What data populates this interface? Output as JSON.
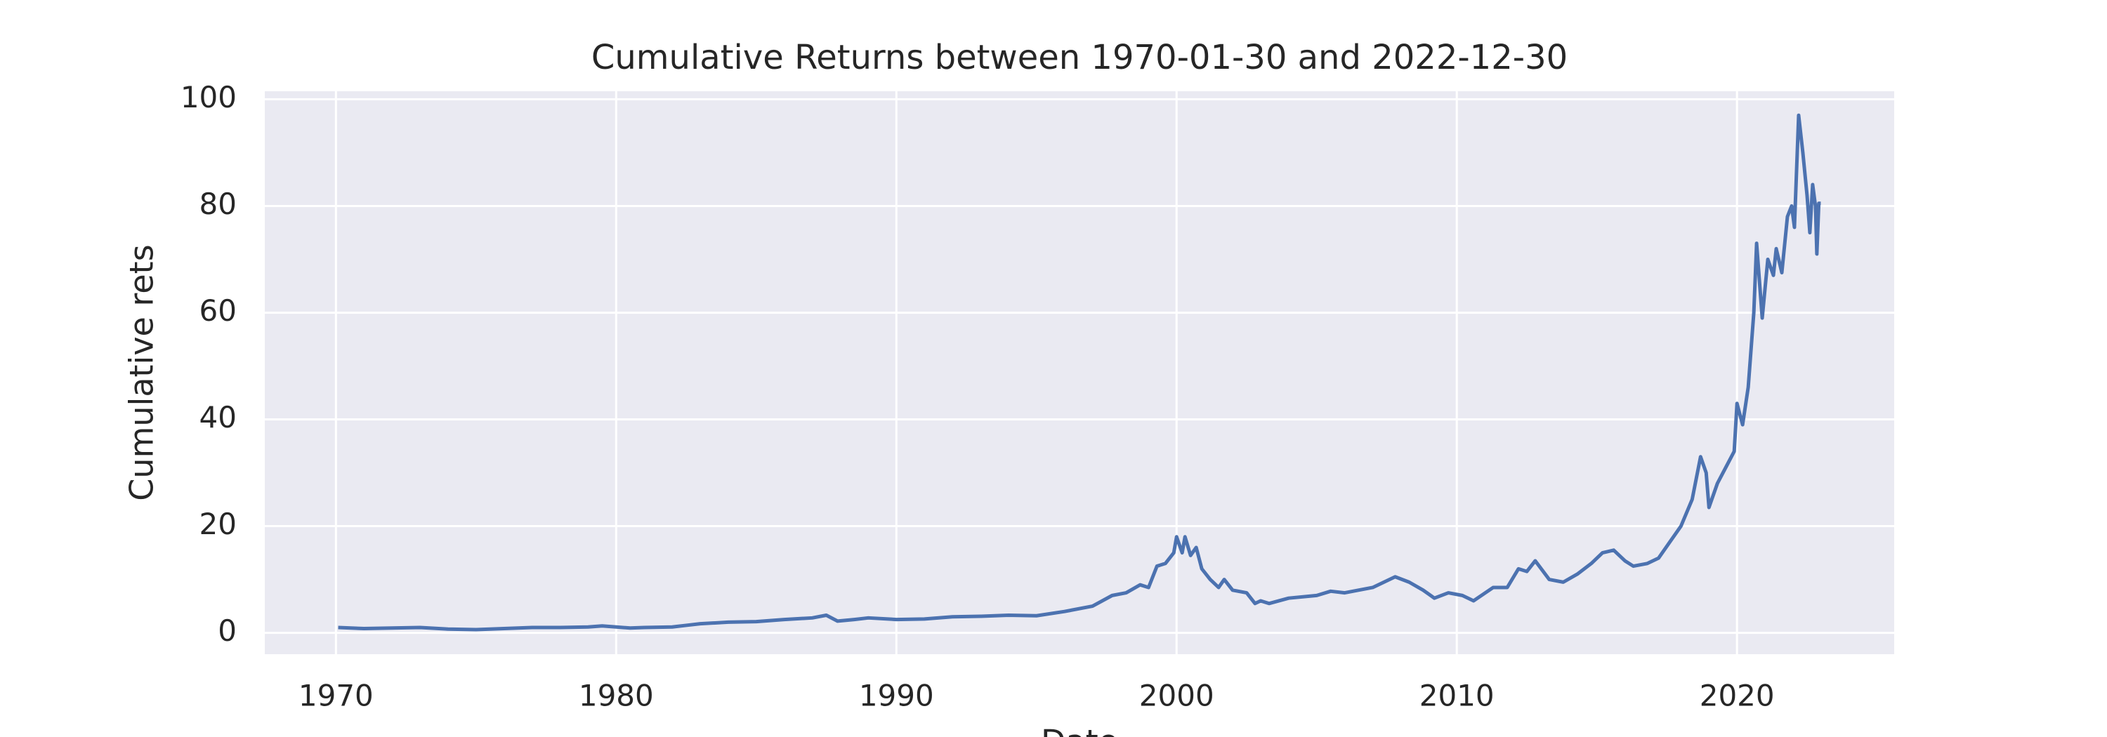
{
  "chart_data": {
    "type": "line",
    "title": "Cumulative Returns between 1970-01-30 and 2022-12-30",
    "x_label": "Date",
    "y_label": "Cumulative rets",
    "x": [
      1970.08,
      1971,
      1972,
      1973,
      1974,
      1975,
      1976,
      1977,
      1978,
      1979,
      1979.5,
      1980,
      1980.5,
      1981,
      1982,
      1982.5,
      1983,
      1984,
      1985,
      1986,
      1987,
      1987.5,
      1987.9,
      1988.5,
      1989,
      1990,
      1991,
      1992,
      1993,
      1994,
      1995,
      1996,
      1997,
      1997.7,
      1998.2,
      1998.7,
      1999,
      1999.3,
      1999.6,
      1999.9,
      2000.0,
      2000.2,
      2000.3,
      2000.5,
      2000.7,
      2000.9,
      2001.2,
      2001.5,
      2001.7,
      2002.0,
      2002.5,
      2002.8,
      2003.0,
      2003.3,
      2004,
      2005,
      2005.5,
      2006,
      2007,
      2007.8,
      2008.3,
      2008.8,
      2009.2,
      2009.7,
      2010.2,
      2010.6,
      2011.3,
      2011.8,
      2012.2,
      2012.5,
      2012.8,
      2013.3,
      2013.8,
      2014.3,
      2014.8,
      2015.2,
      2015.6,
      2016.0,
      2016.3,
      2016.8,
      2017.2,
      2017.6,
      2018.0,
      2018.4,
      2018.7,
      2018.9,
      2019.0,
      2019.3,
      2019.6,
      2019.9,
      2020.0,
      2020.2,
      2020.4,
      2020.6,
      2020.7,
      2020.9,
      2021.1,
      2021.3,
      2021.4,
      2021.6,
      2021.8,
      2021.95,
      2022.05,
      2022.2,
      2022.35,
      2022.5,
      2022.6,
      2022.7,
      2022.8,
      2022.85,
      2022.92,
      2022.99
    ],
    "series": [
      {
        "name": "Cumulative rets",
        "color": "#4c72b0",
        "values": [
          1.0,
          0.8,
          0.9,
          1.0,
          0.7,
          0.6,
          0.8,
          1.0,
          1.0,
          1.1,
          1.3,
          1.1,
          0.9,
          1.0,
          1.1,
          1.4,
          1.7,
          2.0,
          2.1,
          2.5,
          2.8,
          3.3,
          2.2,
          2.5,
          2.8,
          2.5,
          2.6,
          3.0,
          3.1,
          3.3,
          3.2,
          4.0,
          5.0,
          7.0,
          7.5,
          9.0,
          8.5,
          12.5,
          13.0,
          15.0,
          18.0,
          15.0,
          18.0,
          14.5,
          16.0,
          12.0,
          10.0,
          8.5,
          10.0,
          8.0,
          7.5,
          5.5,
          6.0,
          5.5,
          6.5,
          7.0,
          7.8,
          7.5,
          8.5,
          10.5,
          9.5,
          8.0,
          6.5,
          7.5,
          7.0,
          6.0,
          8.5,
          8.5,
          12.0,
          11.5,
          13.5,
          10.0,
          9.5,
          11.0,
          13.0,
          15.0,
          15.5,
          13.5,
          12.5,
          13.0,
          14.0,
          17.0,
          20.0,
          25.0,
          33.0,
          30.0,
          23.5,
          28.0,
          31.0,
          34.0,
          43.0,
          39.0,
          46.0,
          60.0,
          73.0,
          59.0,
          70.0,
          67.0,
          72.0,
          67.5,
          78.0,
          80.0,
          76.0,
          97.0,
          90.0,
          82.0,
          75.0,
          84.0,
          80.0,
          71.0,
          80.5,
          80.5
        ]
      }
    ],
    "xlim": [
      1967.46,
      2025.61
    ],
    "xticks": [
      1970,
      1980,
      1990,
      2000,
      2010,
      2020
    ],
    "ylim": [
      -4.0,
      101.5
    ],
    "yticks": [
      0,
      20,
      40,
      60,
      80,
      100
    ],
    "grid": true,
    "background": "#eaeaf2"
  }
}
